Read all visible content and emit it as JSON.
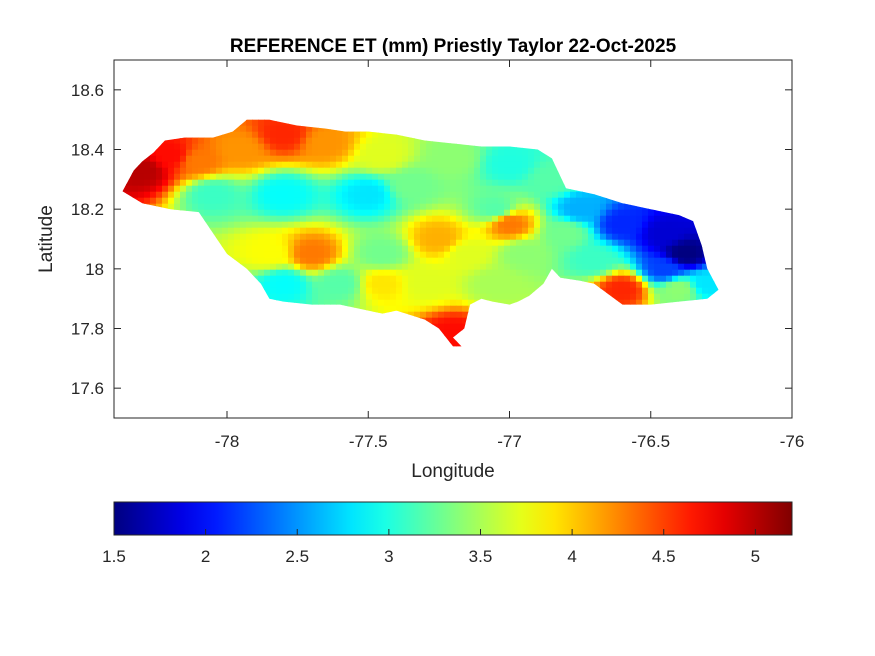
{
  "chart_data": {
    "type": "heatmap",
    "title": "REFERENCE ET (mm) Priestly Taylor 22-Oct-2025",
    "xlabel": "Longitude",
    "ylabel": "Latitude",
    "xlim": [
      -78.4,
      -76.0
    ],
    "ylim": [
      17.5,
      18.7
    ],
    "xticks": [
      -78,
      -77.5,
      -77,
      -76.5,
      -76
    ],
    "xtick_labels": [
      "-78",
      "-77.5",
      "-77",
      "-76.5",
      "-76"
    ],
    "yticks": [
      17.6,
      17.8,
      18.0,
      18.2,
      18.4,
      18.6
    ],
    "ytick_labels": [
      "17.6",
      "17.8",
      "18",
      "18.2",
      "18.4",
      "18.6"
    ],
    "colorbar": {
      "colormap": "jet",
      "location": "southoutside",
      "clim": [
        1.5,
        5.2
      ],
      "ticks": [
        1.5,
        2,
        2.5,
        3,
        3.5,
        4,
        4.5,
        5
      ],
      "tick_labels": [
        "1.5",
        "2",
        "2.5",
        "3",
        "3.5",
        "4",
        "4.5",
        "5"
      ]
    },
    "grid": false,
    "region_outline": [
      [
        -78.37,
        18.26
      ],
      [
        -78.33,
        18.33
      ],
      [
        -78.3,
        18.36
      ],
      [
        -78.26,
        18.39
      ],
      [
        -78.22,
        18.43
      ],
      [
        -78.15,
        18.44
      ],
      [
        -78.05,
        18.44
      ],
      [
        -77.98,
        18.46
      ],
      [
        -77.93,
        18.5
      ],
      [
        -77.85,
        18.5
      ],
      [
        -77.75,
        18.48
      ],
      [
        -77.65,
        18.47
      ],
      [
        -77.58,
        18.46
      ],
      [
        -77.5,
        18.46
      ],
      [
        -77.4,
        18.45
      ],
      [
        -77.3,
        18.43
      ],
      [
        -77.2,
        18.42
      ],
      [
        -77.1,
        18.41
      ],
      [
        -77.0,
        18.41
      ],
      [
        -76.9,
        18.4
      ],
      [
        -76.85,
        18.37
      ],
      [
        -76.8,
        18.27
      ],
      [
        -76.75,
        18.26
      ],
      [
        -76.7,
        18.25
      ],
      [
        -76.6,
        18.22
      ],
      [
        -76.5,
        18.2
      ],
      [
        -76.4,
        18.18
      ],
      [
        -76.35,
        18.16
      ],
      [
        -76.32,
        18.08
      ],
      [
        -76.3,
        18.0
      ],
      [
        -76.26,
        17.93
      ],
      [
        -76.3,
        17.9
      ],
      [
        -76.4,
        17.89
      ],
      [
        -76.5,
        17.88
      ],
      [
        -76.6,
        17.88
      ],
      [
        -76.7,
        17.95
      ],
      [
        -76.75,
        17.96
      ],
      [
        -76.82,
        17.97
      ],
      [
        -76.85,
        18.0
      ],
      [
        -76.88,
        17.95
      ],
      [
        -76.93,
        17.91
      ],
      [
        -76.97,
        17.89
      ],
      [
        -77.0,
        17.88
      ],
      [
        -77.06,
        17.89
      ],
      [
        -77.1,
        17.9
      ],
      [
        -77.14,
        17.88
      ],
      [
        -77.16,
        17.8
      ],
      [
        -77.2,
        17.77
      ],
      [
        -77.17,
        17.74
      ],
      [
        -77.2,
        17.74
      ],
      [
        -77.25,
        17.8
      ],
      [
        -77.3,
        17.83
      ],
      [
        -77.4,
        17.86
      ],
      [
        -77.45,
        17.85
      ],
      [
        -77.5,
        17.86
      ],
      [
        -77.6,
        17.88
      ],
      [
        -77.7,
        17.88
      ],
      [
        -77.8,
        17.89
      ],
      [
        -77.85,
        17.9
      ],
      [
        -77.88,
        17.95
      ],
      [
        -77.93,
        18.0
      ],
      [
        -78.0,
        18.05
      ],
      [
        -78.05,
        18.12
      ],
      [
        -78.1,
        18.19
      ],
      [
        -78.2,
        18.2
      ],
      [
        -78.3,
        18.22
      ],
      [
        -78.37,
        18.26
      ]
    ],
    "value_field": [
      {
        "lon": -78.3,
        "lat": 18.33,
        "value": 5.0
      },
      {
        "lon": -78.2,
        "lat": 18.38,
        "value": 4.7
      },
      {
        "lon": -78.1,
        "lat": 18.36,
        "value": 4.3
      },
      {
        "lon": -77.95,
        "lat": 18.4,
        "value": 4.2
      },
      {
        "lon": -77.8,
        "lat": 18.45,
        "value": 4.6
      },
      {
        "lon": -77.65,
        "lat": 18.42,
        "value": 4.2
      },
      {
        "lon": -77.45,
        "lat": 18.38,
        "value": 3.7
      },
      {
        "lon": -77.2,
        "lat": 18.37,
        "value": 3.4
      },
      {
        "lon": -77.0,
        "lat": 18.35,
        "value": 3.0
      },
      {
        "lon": -76.85,
        "lat": 18.3,
        "value": 3.2
      },
      {
        "lon": -78.05,
        "lat": 18.25,
        "value": 3.1
      },
      {
        "lon": -77.8,
        "lat": 18.25,
        "value": 2.9
      },
      {
        "lon": -77.5,
        "lat": 18.25,
        "value": 2.8
      },
      {
        "lon": -77.35,
        "lat": 18.28,
        "value": 3.3
      },
      {
        "lon": -77.05,
        "lat": 18.2,
        "value": 3.2
      },
      {
        "lon": -77.0,
        "lat": 18.15,
        "value": 4.3
      },
      {
        "lon": -77.25,
        "lat": 18.1,
        "value": 4.1
      },
      {
        "lon": -77.15,
        "lat": 18.05,
        "value": 3.7
      },
      {
        "lon": -77.7,
        "lat": 18.05,
        "value": 4.3
      },
      {
        "lon": -77.85,
        "lat": 18.05,
        "value": 3.8
      },
      {
        "lon": -77.8,
        "lat": 17.95,
        "value": 2.9
      },
      {
        "lon": -77.6,
        "lat": 17.95,
        "value": 3.2
      },
      {
        "lon": -77.45,
        "lat": 18.05,
        "value": 3.3
      },
      {
        "lon": -77.45,
        "lat": 17.95,
        "value": 3.9
      },
      {
        "lon": -77.3,
        "lat": 17.95,
        "value": 3.7
      },
      {
        "lon": -77.2,
        "lat": 17.78,
        "value": 4.7
      },
      {
        "lon": -77.05,
        "lat": 17.95,
        "value": 3.5
      },
      {
        "lon": -76.95,
        "lat": 18.05,
        "value": 3.4
      },
      {
        "lon": -76.8,
        "lat": 18.12,
        "value": 3.3
      },
      {
        "lon": -76.75,
        "lat": 18.2,
        "value": 2.6
      },
      {
        "lon": -76.6,
        "lat": 18.15,
        "value": 2.1
      },
      {
        "lon": -76.45,
        "lat": 18.12,
        "value": 1.8
      },
      {
        "lon": -76.38,
        "lat": 18.05,
        "value": 1.5
      },
      {
        "lon": -76.45,
        "lat": 18.0,
        "value": 2.2
      },
      {
        "lon": -76.6,
        "lat": 17.93,
        "value": 4.6
      },
      {
        "lon": -76.4,
        "lat": 17.93,
        "value": 3.4
      },
      {
        "lon": -76.3,
        "lat": 17.95,
        "value": 2.8
      },
      {
        "lon": -76.7,
        "lat": 18.03,
        "value": 3.1
      }
    ]
  }
}
